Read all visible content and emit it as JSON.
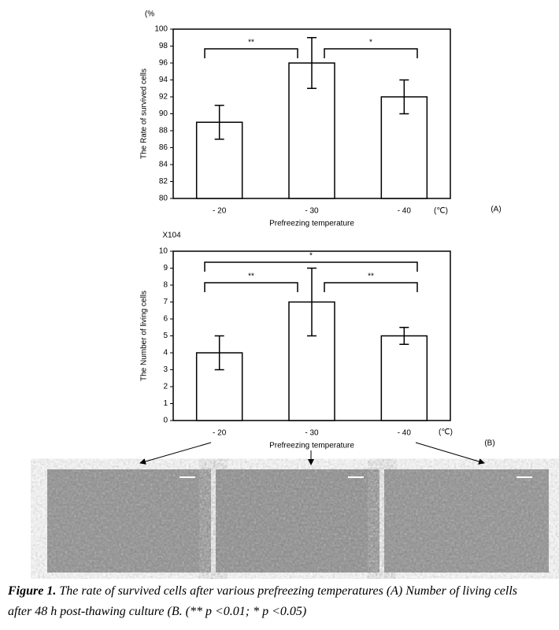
{
  "chart_data": [
    {
      "type": "bar",
      "unit_label": "(%",
      "y_label": "The Rate of survived cells",
      "x_label": "Prefreezing temperature",
      "x_unit": "(℃)",
      "panel_label": "(A)",
      "categories": [
        "- 20",
        "- 30",
        "- 40"
      ],
      "values": [
        89,
        96,
        92
      ],
      "errors": [
        2,
        3,
        2
      ],
      "color": "#ffffff",
      "ylim": [
        80,
        100
      ],
      "yticks": [
        80,
        82,
        84,
        86,
        88,
        90,
        92,
        94,
        96,
        98,
        100
      ],
      "annotations": [
        {
          "label": "**"
        },
        {
          "label": "*"
        }
      ]
    },
    {
      "type": "bar",
      "unit_label": "X104",
      "y_label": "The Number of living cells",
      "x_label": "Prefreezing temperature",
      "x_unit": "(℃)",
      "panel_label": "(B)",
      "categories": [
        "- 20",
        "- 30",
        "- 40"
      ],
      "values": [
        4,
        7,
        5
      ],
      "errors": [
        1,
        2,
        0.5
      ],
      "color": "#ffffff",
      "ylim": [
        0,
        10
      ],
      "yticks": [
        0,
        1,
        2,
        3,
        4,
        5,
        6,
        7,
        8,
        9,
        10
      ],
      "annotations": [
        {
          "label": "**"
        },
        {
          "label": "**"
        },
        {
          "label": "*"
        }
      ]
    }
  ],
  "caption": {
    "label": "Figure 1.",
    "text": "The rate of survived cells after various prefreezing temperatures (A) Number of living cells after 48 h post-thawing culture (B. (** p <0.01; * p <0.05)"
  }
}
